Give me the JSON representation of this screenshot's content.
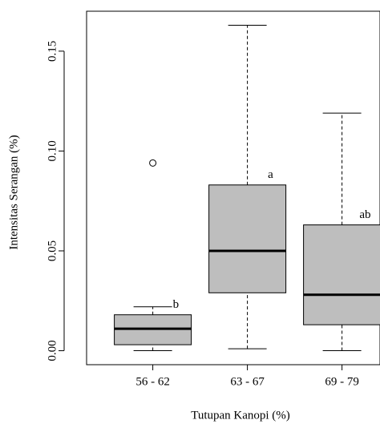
{
  "chart_data": {
    "type": "boxplot",
    "x_label": "Tutupan Kanopi (%)",
    "y_label": "Intensitas Serangan (%)",
    "categories": [
      "56 - 62",
      "63 - 67",
      "69 - 79"
    ],
    "whisker_low": [
      0.0,
      0.001,
      0.0
    ],
    "q1": [
      0.003,
      0.029,
      0.013
    ],
    "median": [
      0.011,
      0.05,
      0.028
    ],
    "q3": [
      0.018,
      0.083,
      0.063
    ],
    "whisker_high": [
      0.022,
      0.163,
      0.119
    ],
    "outliers": [
      [
        0.094
      ],
      [],
      []
    ],
    "annotations": [
      "b",
      "a",
      "ab"
    ],
    "color": "#bebebe",
    "ylim": [
      -0.007,
      0.17
    ],
    "yticks": [
      {
        "value": 0,
        "label": "0.00"
      },
      0.05,
      {
        "value": 0.1,
        "label": "0.10"
      },
      0.15
    ]
  }
}
